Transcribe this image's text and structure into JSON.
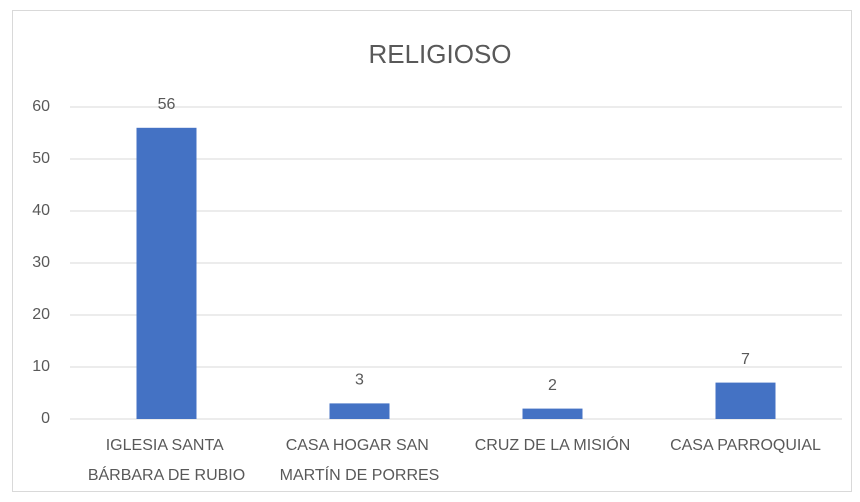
{
  "chart_data": {
    "type": "bar",
    "title": "RELIGIOSO",
    "categories": [
      "IGLESIA SANTA BÁRBARA DE RUBIO",
      "CASA HOGAR SAN MARTÍN DE PORRES",
      "CRUZ DE LA MISIÓN",
      "CASA PARROQUIAL"
    ],
    "values": [
      56,
      3,
      2,
      7
    ],
    "color": "#4472c4",
    "ylim": [
      0,
      60
    ],
    "yticks": [
      0,
      10,
      20,
      30,
      40,
      50,
      60
    ],
    "grid": true
  }
}
